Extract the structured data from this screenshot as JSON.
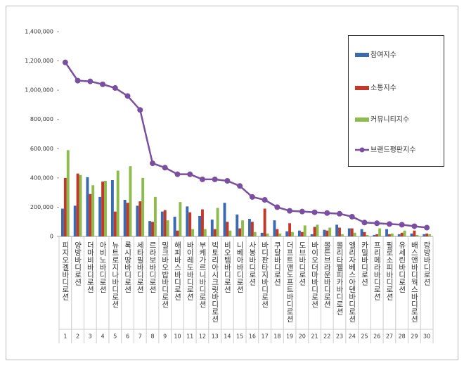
{
  "chart_data": {
    "type": "bar",
    "categories": [
      "피지오겔바디로션",
      "양방바디로션",
      "더마비바디로션",
      "아비노바디로션",
      "뉴트로지나바디로션",
      "록시땅바디로션",
      "세타필바디로션",
      "르라보바디로션",
      "밀크바오밥바디로션",
      "해피바스바디로션",
      "바이레도바디로션",
      "부케가르니바디로션",
      "빅토리아시크릿바디로션",
      "비오템바디로션",
      "니베아바디로션",
      "사봉바디로션",
      "바디판타지바디로션",
      "쿠달바디로션",
      "더프트앤도프트바디로션",
      "도브바디로션",
      "바이오더마바디로션",
      "몰튼브라운바디로션",
      "몰리타웰피카바디로션",
      "엘리자베스아덴바디로션",
      "카밀바디로션",
      "프리메라바디로션",
      "필로소피바디로션",
      "유세린바디로션",
      "배스앤바디웍스바디로션",
      "랑방바디로션"
    ],
    "ranks": [
      1,
      2,
      3,
      4,
      5,
      6,
      7,
      8,
      9,
      10,
      11,
      12,
      13,
      14,
      15,
      16,
      17,
      18,
      19,
      20,
      21,
      22,
      23,
      24,
      25,
      26,
      27,
      28,
      29,
      30
    ],
    "series": [
      {
        "name": "참여지수",
        "color": "#3a6bb0",
        "type": "bar",
        "values": [
          190000,
          210000,
          405000,
          270000,
          385000,
          250000,
          210000,
          105000,
          170000,
          135000,
          205000,
          140000,
          115000,
          230000,
          150000,
          120000,
          25000,
          110000,
          35000,
          40000,
          15000,
          45000,
          80000,
          55000,
          50000,
          10000,
          50000,
          15000,
          20000,
          15000
        ]
      },
      {
        "name": "소통지수",
        "color": "#c0392b",
        "type": "bar",
        "values": [
          400000,
          430000,
          290000,
          375000,
          170000,
          230000,
          240000,
          100000,
          180000,
          40000,
          165000,
          185000,
          50000,
          100000,
          55000,
          100000,
          190000,
          50000,
          90000,
          30000,
          65000,
          40000,
          60000,
          55000,
          30000,
          15000,
          15000,
          25000,
          40000,
          20000
        ]
      },
      {
        "name": "커뮤니티지수",
        "color": "#8dbb4c",
        "type": "bar",
        "values": [
          590000,
          420000,
          350000,
          380000,
          450000,
          480000,
          400000,
          270000,
          110000,
          235000,
          50000,
          50000,
          195000,
          40000,
          110000,
          30000,
          20000,
          20000,
          30000,
          75000,
          80000,
          60000,
          15000,
          25000,
          10000,
          55000,
          20000,
          40000,
          10000,
          15000
        ]
      },
      {
        "name": "브랜드평판지수",
        "color": "#7b4fa0",
        "type": "line",
        "values": [
          1190000,
          1065000,
          1060000,
          1040000,
          1015000,
          960000,
          865000,
          500000,
          470000,
          425000,
          425000,
          390000,
          390000,
          380000,
          345000,
          270000,
          250000,
          200000,
          175000,
          170000,
          165000,
          160000,
          155000,
          135000,
          95000,
          90000,
          85000,
          80000,
          70000,
          60000
        ]
      }
    ],
    "ylim": [
      0,
      1400000
    ],
    "yticks": [
      0,
      {
        "value": 200000,
        "label": "200,000"
      },
      {
        "value": 400000,
        "label": "400,000"
      },
      {
        "value": 600000,
        "label": "600,000"
      },
      {
        "value": 800000,
        "label": "800,000"
      },
      {
        "value": 1000000,
        "label": "1,000,000"
      },
      {
        "value": 1200000,
        "label": "1,200,000"
      },
      {
        "value": 1400000,
        "label": "1,400,000"
      }
    ],
    "grid": false,
    "legend": "upper right"
  }
}
